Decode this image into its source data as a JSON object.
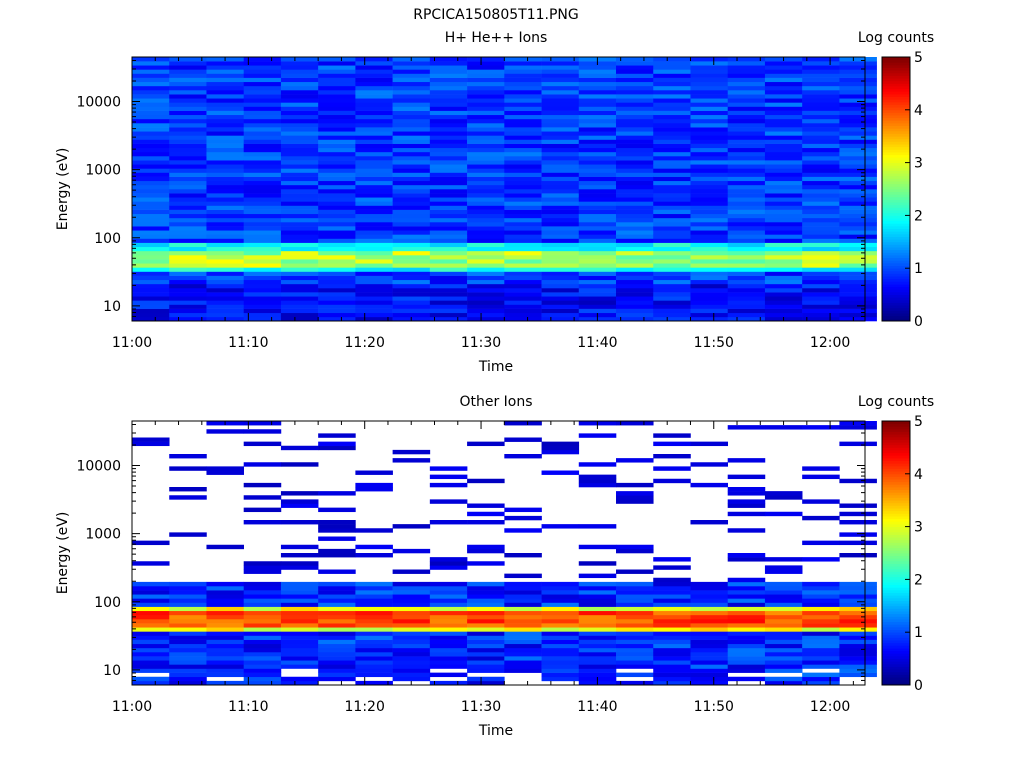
{
  "figure_title": "RPCICA150805T11.PNG",
  "chart_data": [
    {
      "type": "heatmap",
      "title": "H+ He++ Ions",
      "xlabel": "Time",
      "ylabel": "Energy (eV)",
      "yscale": "log",
      "ylim": [
        6,
        45000
      ],
      "xlim": [
        "11:00",
        "12:03"
      ],
      "xticks": [
        "11:00",
        "11:10",
        "11:20",
        "11:30",
        "11:40",
        "11:50",
        "12:00"
      ],
      "yticks": [
        "10",
        "100",
        "1000",
        "10000"
      ],
      "colorbar": {
        "label": "Log counts",
        "range": [
          0,
          5
        ],
        "ticks": [
          "0",
          "1",
          "2",
          "3",
          "4",
          "5"
        ]
      },
      "time_bins": [
        "11:01.6",
        "11:04.8",
        "11:08.0",
        "11:11.2",
        "11:14.4",
        "11:17.6",
        "11:20.8",
        "11:24.0",
        "11:27.2",
        "11:30.4",
        "11:33.6",
        "11:36.8",
        "11:40.0",
        "11:43.2",
        "11:46.4",
        "11:49.6",
        "11:52.8",
        "11:56.0",
        "11:59.2",
        "12:02.4"
      ],
      "energy_range": [
        6,
        45000
      ],
      "energy_bins": 64,
      "features": [
        {
          "description": "background",
          "log_counts": 0.9
        },
        {
          "description": "band",
          "energy": 50,
          "log_counts": 2.7
        }
      ]
    },
    {
      "type": "heatmap",
      "title": "Other Ions",
      "xlabel": "Time",
      "ylabel": "Energy (eV)",
      "yscale": "log",
      "ylim": [
        6,
        45000
      ],
      "xlim": [
        "11:00",
        "12:03"
      ],
      "xticks": [
        "11:00",
        "11:10",
        "11:20",
        "11:30",
        "11:40",
        "11:50",
        "12:00"
      ],
      "yticks": [
        "10",
        "100",
        "1000",
        "10000"
      ],
      "colorbar": {
        "label": "Log counts",
        "range": [
          0,
          5
        ],
        "ticks": [
          "0",
          "1",
          "2",
          "3",
          "4",
          "5"
        ]
      },
      "time_bins": [
        "11:01.6",
        "11:04.8",
        "11:08.0",
        "11:11.2",
        "11:14.4",
        "11:17.6",
        "11:20.8",
        "11:24.0",
        "11:27.2",
        "11:30.4",
        "11:33.6",
        "11:36.8",
        "11:40.0",
        "11:43.2",
        "11:46.4",
        "11:49.6",
        "11:52.8",
        "11:56.0",
        "11:59.2",
        "12:02.4"
      ],
      "energy_range": [
        6,
        45000
      ],
      "energy_bins": 64,
      "features": [
        {
          "description": "sparse high-energy counts",
          "energy_range": [
            200,
            45000
          ],
          "log_counts": 0.3
        },
        {
          "description": "dense low-energy region",
          "energy_range": [
            10,
            200
          ],
          "log_counts": 1.0
        },
        {
          "description": "band",
          "energy": 55,
          "log_counts": 4.0
        }
      ]
    }
  ]
}
